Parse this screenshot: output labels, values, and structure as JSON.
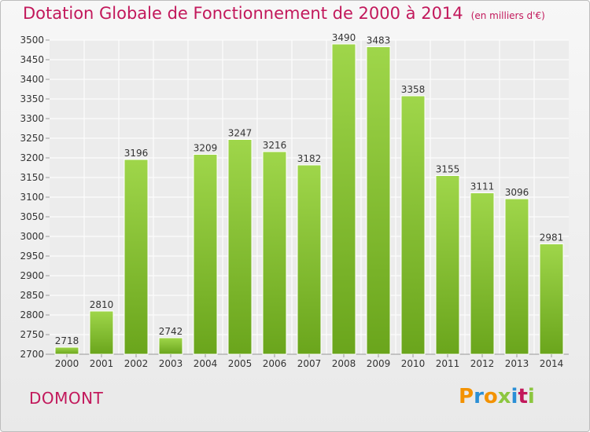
{
  "chart_data": {
    "type": "bar",
    "title": "Dotation Globale de Fonctionnement de 2000 à 2014",
    "subtitle": "(en milliers d'€)",
    "categories": [
      "2000",
      "2001",
      "2002",
      "2003",
      "2004",
      "2005",
      "2006",
      "2007",
      "2008",
      "2009",
      "2010",
      "2011",
      "2012",
      "2013",
      "2014"
    ],
    "values": [
      2718,
      2810,
      3196,
      2742,
      3209,
      3247,
      3216,
      3182,
      3490,
      3483,
      3358,
      3155,
      3111,
      3096,
      2981
    ],
    "ylim": [
      2700,
      3500
    ],
    "yticks": [
      2700,
      2750,
      2800,
      2850,
      2900,
      2950,
      3000,
      3050,
      3100,
      3150,
      3200,
      3250,
      3300,
      3350,
      3400,
      3450,
      3500
    ],
    "grid": true,
    "colors": {
      "bar_light": "#9fd64a",
      "bar_dark": "#6aa51c",
      "title": "#c2185b"
    }
  },
  "footer": {
    "commune": "DOMONT",
    "logo_letters": [
      "P",
      "r",
      "o",
      "x",
      "i",
      "t",
      "i"
    ],
    "logo_colors": [
      "#f39200",
      "#2a8fd6",
      "#f39200",
      "#8cc63f",
      "#2a8fd6",
      "#c2185b",
      "#8cc63f"
    ]
  }
}
